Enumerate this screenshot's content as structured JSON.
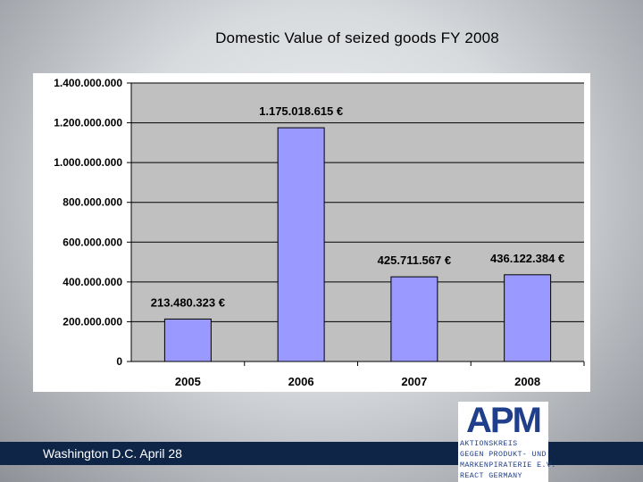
{
  "slide": {
    "title": "Domestic Value of seized goods FY 2008",
    "footer": "Washington D.C. April 28"
  },
  "logo": {
    "mark": "APM",
    "lines": [
      "AKTIONSKREIS",
      "GEGEN PRODUKT- UND",
      "MARKENPIRATERIE E.V.",
      "REACT GERMANY"
    ]
  },
  "colors": {
    "plot_bg": "#c0c0c0",
    "bar_fill": "#9999ff",
    "footer_band": "#0f2547",
    "logo_blue": "#1f3f8a"
  },
  "chart_data": {
    "type": "bar",
    "title": "Domestic Value of seized goods FY 2008",
    "xlabel": "",
    "ylabel": "",
    "categories": [
      "2005",
      "2006",
      "2007",
      "2008"
    ],
    "series": [
      {
        "values": [
          213480323,
          1175018615,
          425711567,
          436122384
        ]
      }
    ],
    "data_labels": [
      "213.480.323 €",
      "1.175.018.615 €",
      "425.711.567 €",
      "436.122.384 €"
    ],
    "ylim": [
      0,
      1400000000
    ],
    "yticks": [
      0,
      200000000,
      400000000,
      600000000,
      800000000,
      1000000000,
      1200000000,
      1400000000
    ],
    "ytick_labels": [
      "0",
      "200.000.000",
      "400.000.000",
      "600.000.000",
      "800.000.000",
      "1.000.000.000",
      "1.200.000.000",
      "1.400.000.000"
    ],
    "grid": true,
    "legend": "none"
  }
}
